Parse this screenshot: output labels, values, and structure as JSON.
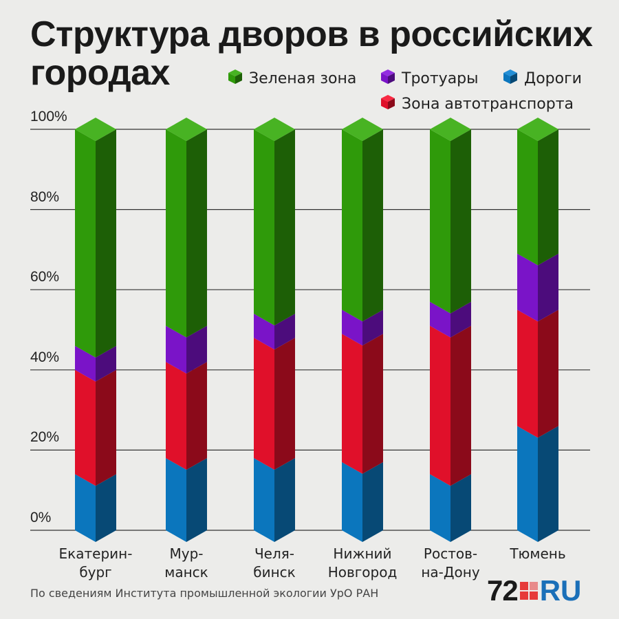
{
  "title": "Структура дворов в российских городах",
  "legend": [
    {
      "label": "Зеленая зона",
      "color": "#2f9a0a"
    },
    {
      "label": "Тротуары",
      "color": "#7a14c8"
    },
    {
      "label": "Дороги",
      "color": "#0b76bd"
    },
    {
      "label": "Зона автотранспорта",
      "color": "#e0102a"
    }
  ],
  "source": "По сведениям Института промышленной экологии УрО РАН",
  "logo": {
    "num": "72",
    "ru": "RU"
  },
  "chart_data": {
    "type": "bar",
    "stacked": true,
    "categories": [
      "Екатерин-\nбург",
      "Мур-\nманск",
      "Челя-\nбинск",
      "Нижний\nНовгород",
      "Ростов-\nна-Дону",
      "Тюмень"
    ],
    "series": [
      {
        "name": "Дороги",
        "color": "#0b76bd",
        "values": [
          14,
          18,
          18,
          17,
          14,
          26
        ]
      },
      {
        "name": "Зона автотранспорта",
        "color": "#e0102a",
        "values": [
          26,
          24,
          30,
          32,
          37,
          29
        ]
      },
      {
        "name": "Тротуары",
        "color": "#7a14c8",
        "values": [
          6,
          9,
          6,
          6,
          6,
          14
        ]
      },
      {
        "name": "Зеленая зона",
        "color": "#2f9a0a",
        "values": [
          54,
          49,
          46,
          45,
          43,
          31
        ]
      }
    ],
    "yticks": [
      "0%",
      "20%",
      "40%",
      "60%",
      "80%",
      "100%"
    ],
    "ylim": [
      0,
      100
    ],
    "grid": true
  }
}
